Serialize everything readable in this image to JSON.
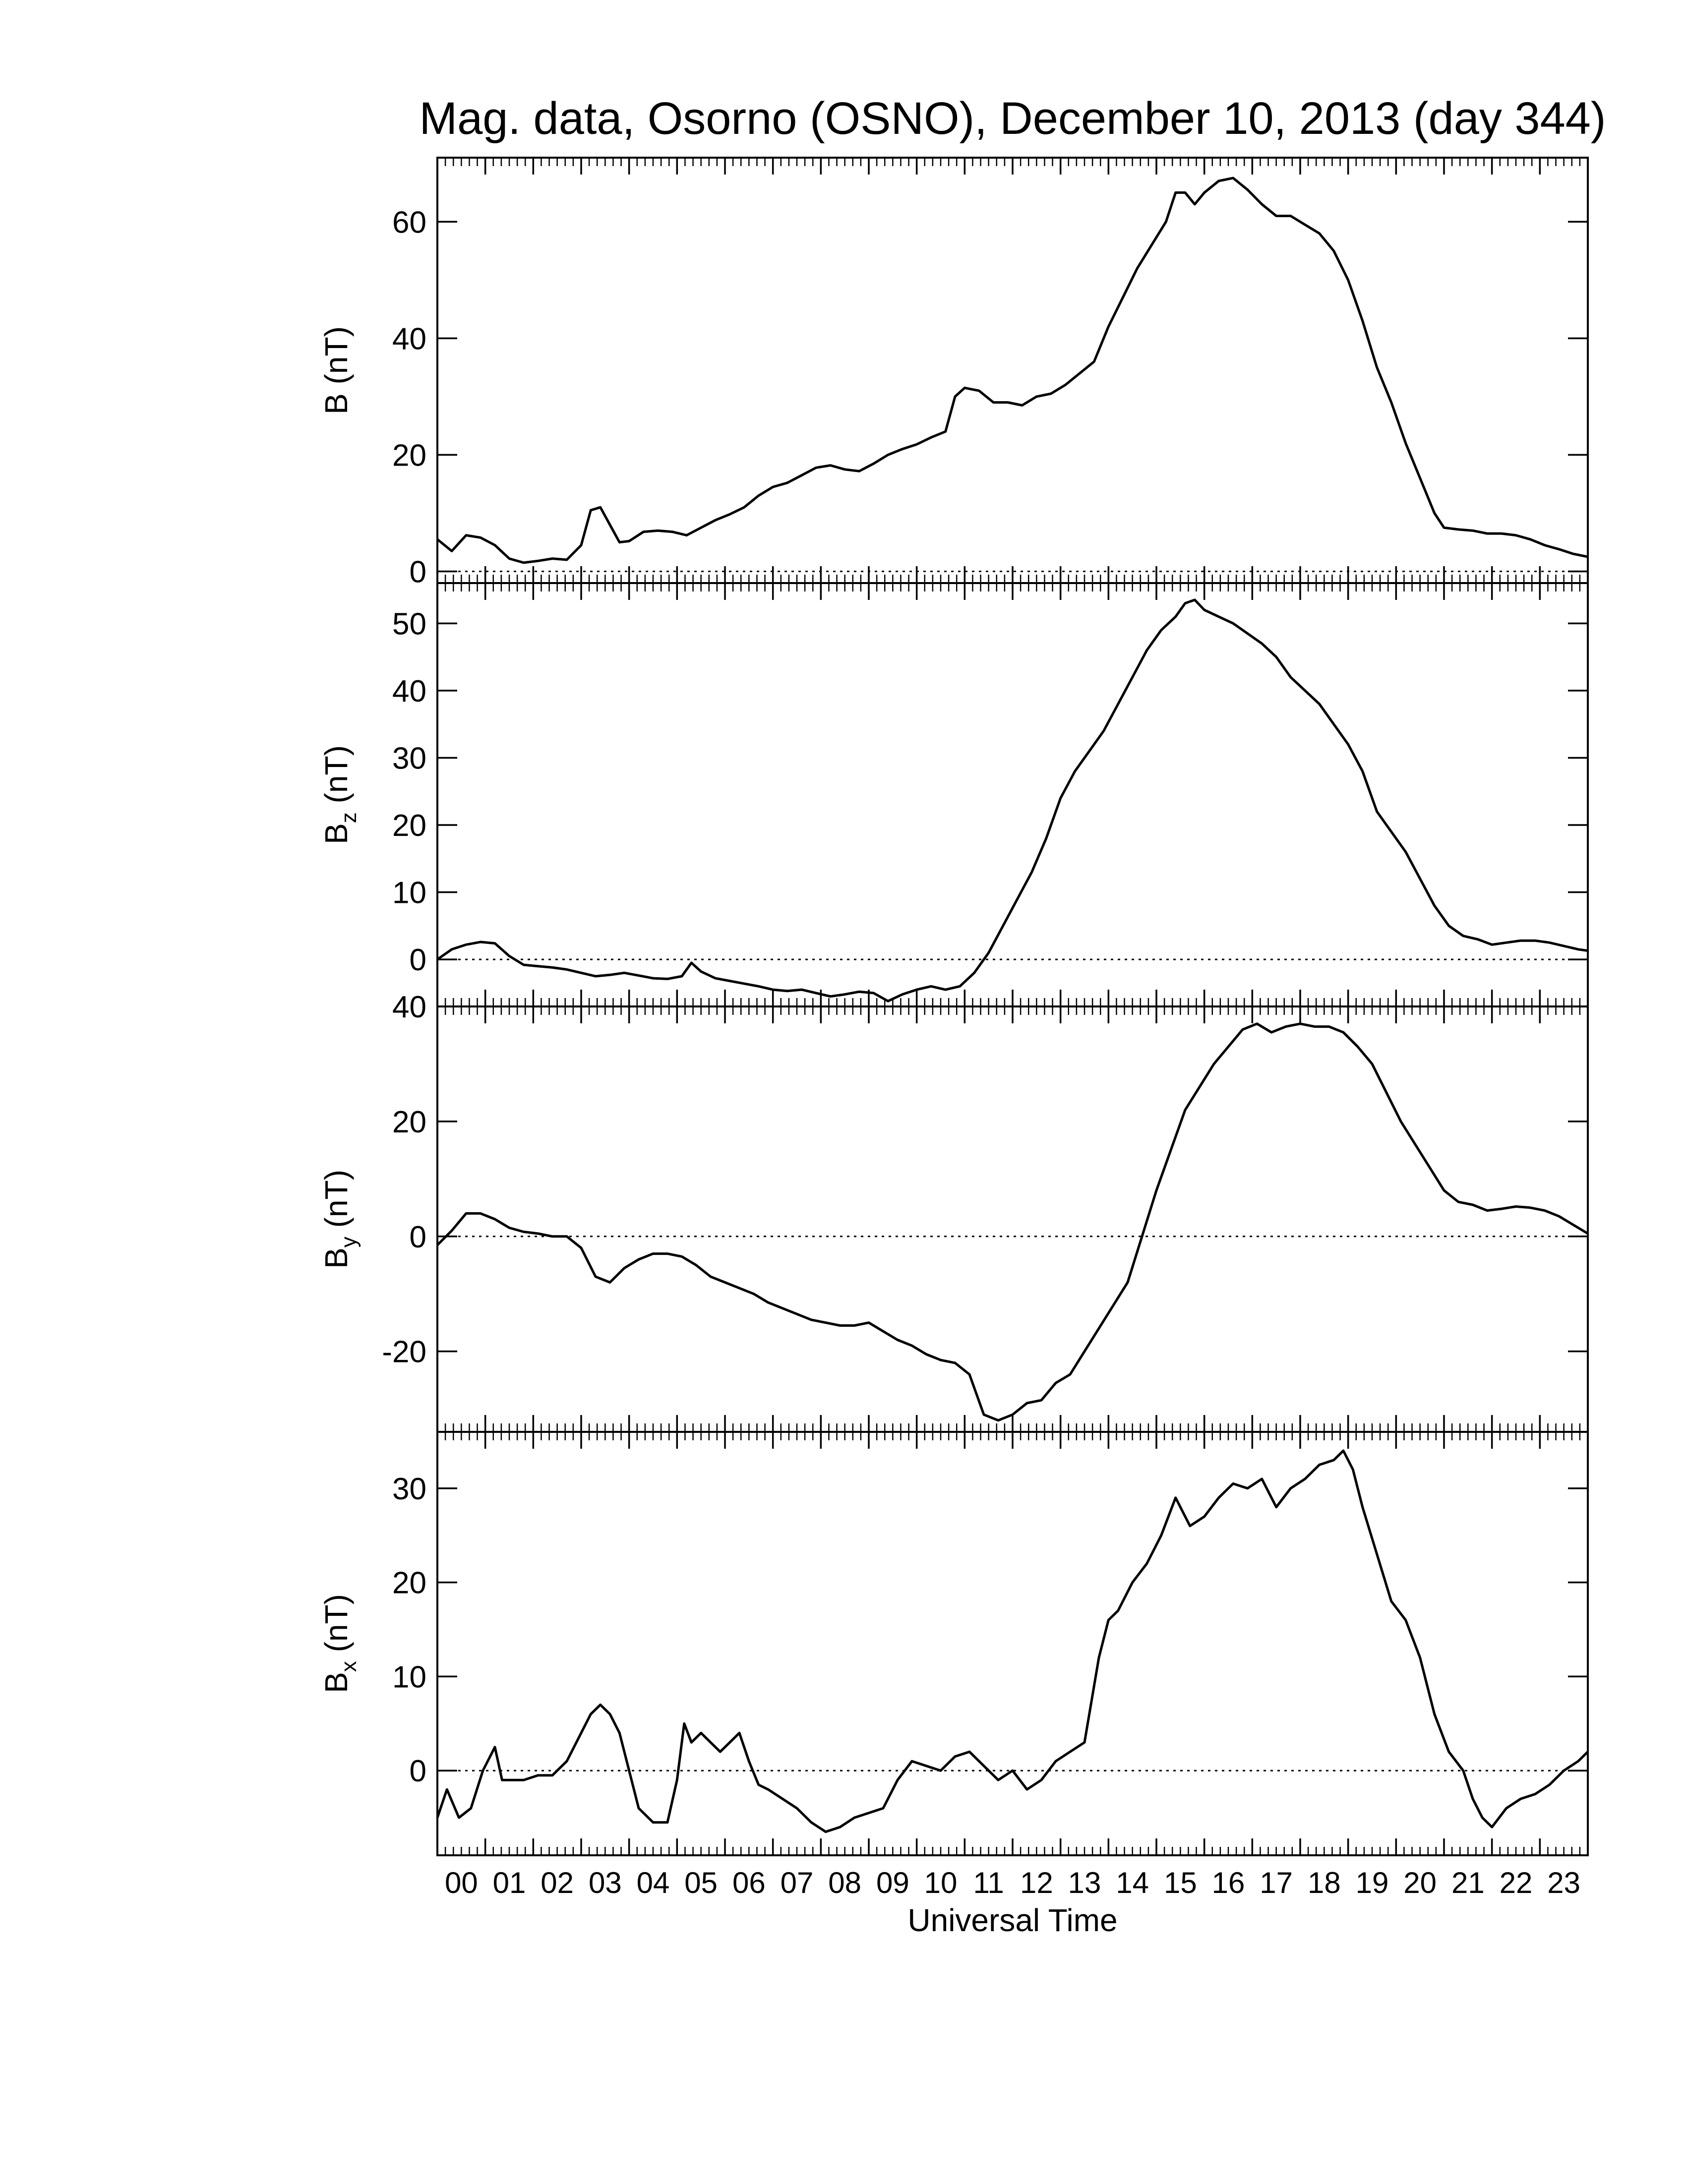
{
  "chart_data": {
    "type": "line",
    "title": "Mag. data, Osorno (OSNO), December 10, 2013 (day 344)",
    "xlabel": "Universal Time",
    "xlim": [
      0,
      24
    ],
    "x_tick_labels": [
      "00",
      "01",
      "02",
      "03",
      "04",
      "05",
      "06",
      "07",
      "08",
      "09",
      "10",
      "11",
      "12",
      "13",
      "14",
      "15",
      "16",
      "17",
      "18",
      "19",
      "20",
      "21",
      "22",
      "23"
    ],
    "line_color": "#000000",
    "zero_line": "dotted",
    "panels": [
      {
        "name": "B",
        "ylabel": "B (nT)",
        "ylabel_main": "B",
        "ylabel_sub": "",
        "ylabel_unit": " (nT)",
        "ylim": [
          -2,
          71
        ],
        "yticks": [
          0,
          20,
          40,
          60
        ],
        "ytick_labels": [
          "0",
          "20",
          "40",
          "60"
        ],
        "series": {
          "x": [
            0,
            0.3,
            0.6,
            0.9,
            1.2,
            1.5,
            1.8,
            2.1,
            2.4,
            2.7,
            3.0,
            3.2,
            3.4,
            3.6,
            3.8,
            4.0,
            4.3,
            4.6,
            4.9,
            5.2,
            5.5,
            5.8,
            6.1,
            6.4,
            6.7,
            7.0,
            7.3,
            7.6,
            7.9,
            8.2,
            8.5,
            8.8,
            9.1,
            9.4,
            9.7,
            10.0,
            10.3,
            10.6,
            10.8,
            11.0,
            11.3,
            11.6,
            11.9,
            12.2,
            12.5,
            12.8,
            13.1,
            13.4,
            13.7,
            14.0,
            14.3,
            14.6,
            14.9,
            15.2,
            15.4,
            15.6,
            15.8,
            16.0,
            16.3,
            16.6,
            16.9,
            17.2,
            17.5,
            17.8,
            18.1,
            18.4,
            18.7,
            19.0,
            19.3,
            19.6,
            19.9,
            20.2,
            20.5,
            20.8,
            21.0,
            21.3,
            21.6,
            21.9,
            22.2,
            22.5,
            22.8,
            23.1,
            23.4,
            23.7,
            24.0
          ],
          "y": [
            5.5,
            3.5,
            6.2,
            5.8,
            4.5,
            2.2,
            1.5,
            1.8,
            2.2,
            2.0,
            4.5,
            10.5,
            11.0,
            8.0,
            5.0,
            5.2,
            6.8,
            7.0,
            6.8,
            6.2,
            7.5,
            8.8,
            9.8,
            11.0,
            13.0,
            14.5,
            15.2,
            16.5,
            17.8,
            18.2,
            17.5,
            17.2,
            18.5,
            20.0,
            21.0,
            21.8,
            23.0,
            24.0,
            30.0,
            31.5,
            31.0,
            29.0,
            29.0,
            28.5,
            30.0,
            30.5,
            32.0,
            34.0,
            36.0,
            42.0,
            47.0,
            52.0,
            56.0,
            60.0,
            65.0,
            65.0,
            63.0,
            65.0,
            67.0,
            67.5,
            65.5,
            63.0,
            61.0,
            61.0,
            59.5,
            58.0,
            55.0,
            50.0,
            43.0,
            35.0,
            29.0,
            22.0,
            16.0,
            10.0,
            7.5,
            7.2,
            7.0,
            6.5,
            6.5,
            6.2,
            5.5,
            4.5,
            3.8,
            3.0,
            2.5
          ]
        }
      },
      {
        "name": "Bz",
        "ylabel": "Bz (nT)",
        "ylabel_main": "B",
        "ylabel_sub": "z",
        "ylabel_unit": " (nT)",
        "ylim": [
          -7,
          56
        ],
        "yticks": [
          0,
          10,
          20,
          30,
          40,
          50
        ],
        "ytick_labels": [
          "0",
          "10",
          "20",
          "30",
          "40",
          "50"
        ],
        "series": {
          "x": [
            0,
            0.3,
            0.6,
            0.9,
            1.2,
            1.5,
            1.8,
            2.1,
            2.4,
            2.7,
            3.0,
            3.3,
            3.6,
            3.9,
            4.2,
            4.5,
            4.8,
            5.1,
            5.3,
            5.5,
            5.8,
            6.1,
            6.4,
            6.7,
            7.0,
            7.3,
            7.6,
            7.9,
            8.2,
            8.5,
            8.8,
            9.1,
            9.4,
            9.7,
            10.0,
            10.3,
            10.6,
            10.9,
            11.2,
            11.5,
            11.8,
            12.1,
            12.4,
            12.7,
            13.0,
            13.3,
            13.6,
            13.9,
            14.2,
            14.5,
            14.8,
            15.1,
            15.4,
            15.6,
            15.8,
            16.0,
            16.3,
            16.6,
            16.9,
            17.2,
            17.5,
            17.8,
            18.1,
            18.4,
            18.7,
            19.0,
            19.3,
            19.6,
            19.9,
            20.2,
            20.5,
            20.8,
            21.1,
            21.4,
            21.7,
            22.0,
            22.3,
            22.6,
            22.9,
            23.2,
            23.5,
            23.8,
            24.0
          ],
          "y": [
            0,
            1.5,
            2.2,
            2.6,
            2.4,
            0.5,
            -0.8,
            -1.0,
            -1.2,
            -1.5,
            -2.0,
            -2.5,
            -2.3,
            -2.0,
            -2.4,
            -2.8,
            -2.9,
            -2.5,
            -0.5,
            -1.8,
            -2.8,
            -3.2,
            -3.6,
            -4.0,
            -4.5,
            -4.7,
            -4.5,
            -5.0,
            -5.5,
            -5.2,
            -4.8,
            -5.0,
            -6.2,
            -5.2,
            -4.5,
            -4.0,
            -4.5,
            -4.0,
            -2.0,
            1.0,
            5.0,
            9.0,
            13.0,
            18.0,
            24.0,
            28.0,
            31.0,
            34.0,
            38.0,
            42.0,
            46.0,
            49.0,
            51.0,
            53.0,
            53.5,
            52.0,
            51.0,
            50.0,
            48.5,
            47.0,
            45.0,
            42.0,
            40.0,
            38.0,
            35.0,
            32.0,
            28.0,
            22.0,
            19.0,
            16.0,
            12.0,
            8.0,
            5.0,
            3.5,
            3.0,
            2.2,
            2.5,
            2.8,
            2.8,
            2.5,
            2.0,
            1.5,
            1.3
          ]
        }
      },
      {
        "name": "By",
        "ylabel": "By (nT)",
        "ylabel_main": "B",
        "ylabel_sub": "y",
        "ylabel_unit": " (nT)",
        "ylim": [
          -34,
          40
        ],
        "yticks": [
          -20,
          0,
          20,
          40
        ],
        "ytick_labels": [
          "-20",
          "0",
          "20",
          "40"
        ],
        "series": {
          "x": [
            0,
            0.3,
            0.6,
            0.9,
            1.2,
            1.5,
            1.8,
            2.1,
            2.4,
            2.7,
            3.0,
            3.3,
            3.6,
            3.9,
            4.2,
            4.5,
            4.8,
            5.1,
            5.4,
            5.7,
            6.0,
            6.3,
            6.6,
            6.9,
            7.2,
            7.5,
            7.8,
            8.1,
            8.4,
            8.7,
            9.0,
            9.3,
            9.6,
            9.9,
            10.2,
            10.5,
            10.8,
            11.1,
            11.4,
            11.7,
            12.0,
            12.3,
            12.6,
            12.9,
            13.2,
            13.5,
            13.8,
            14.1,
            14.4,
            14.7,
            15.0,
            15.3,
            15.6,
            15.9,
            16.2,
            16.5,
            16.8,
            17.1,
            17.4,
            17.7,
            18.0,
            18.3,
            18.6,
            18.9,
            19.2,
            19.5,
            19.8,
            20.1,
            20.4,
            20.7,
            21.0,
            21.3,
            21.6,
            21.9,
            22.2,
            22.5,
            22.8,
            23.1,
            23.4,
            23.7,
            24.0
          ],
          "y": [
            -1.5,
            1.0,
            4.0,
            4.0,
            3.0,
            1.5,
            0.8,
            0.5,
            0,
            0,
            -2.0,
            -7.0,
            -8.0,
            -5.5,
            -4.0,
            -3.0,
            -3.0,
            -3.5,
            -5.0,
            -7.0,
            -8.0,
            -9.0,
            -10.0,
            -11.5,
            -12.5,
            -13.5,
            -14.5,
            -15.0,
            -15.5,
            -15.5,
            -15.0,
            -16.5,
            -18.0,
            -19.0,
            -20.5,
            -21.5,
            -22.0,
            -24.0,
            -31.0,
            -32.0,
            -31.0,
            -29.0,
            -28.5,
            -25.5,
            -24.0,
            -20.0,
            -16.0,
            -12.0,
            -8.0,
            0,
            8.0,
            15.0,
            22.0,
            26.0,
            30.0,
            33.0,
            36.0,
            37.0,
            35.5,
            36.5,
            37.0,
            36.5,
            36.5,
            35.5,
            33.0,
            30.0,
            25.0,
            20.0,
            16.0,
            12.0,
            8.0,
            6.0,
            5.5,
            4.5,
            4.8,
            5.2,
            5.0,
            4.5,
            3.5,
            2.0,
            0.5
          ]
        }
      },
      {
        "name": "Bx",
        "ylabel": "Bx (nT)",
        "ylabel_main": "B",
        "ylabel_sub": "x",
        "ylabel_unit": " (nT)",
        "ylim": [
          -9,
          36
        ],
        "yticks": [
          0,
          10,
          20,
          30
        ],
        "ytick_labels": [
          "0",
          "10",
          "20",
          "30"
        ],
        "series": {
          "x": [
            0,
            0.2,
            0.45,
            0.7,
            0.95,
            1.2,
            1.35,
            1.5,
            1.8,
            2.1,
            2.4,
            2.7,
            3.0,
            3.2,
            3.4,
            3.6,
            3.8,
            4.0,
            4.2,
            4.5,
            4.8,
            5.0,
            5.15,
            5.3,
            5.5,
            5.7,
            5.9,
            6.1,
            6.3,
            6.5,
            6.7,
            6.9,
            7.2,
            7.5,
            7.8,
            8.1,
            8.4,
            8.7,
            9.0,
            9.3,
            9.6,
            9.9,
            10.2,
            10.5,
            10.8,
            11.1,
            11.4,
            11.7,
            12.0,
            12.3,
            12.6,
            12.9,
            13.2,
            13.5,
            13.8,
            14.0,
            14.2,
            14.5,
            14.8,
            15.1,
            15.4,
            15.7,
            16.0,
            16.3,
            16.6,
            16.9,
            17.2,
            17.5,
            17.8,
            18.1,
            18.4,
            18.7,
            18.9,
            19.1,
            19.3,
            19.6,
            19.9,
            20.2,
            20.5,
            20.8,
            21.1,
            21.4,
            21.6,
            21.8,
            22.0,
            22.3,
            22.6,
            22.9,
            23.2,
            23.5,
            23.8,
            24.0
          ],
          "y": [
            -5.0,
            -2.0,
            -5.0,
            -4.0,
            0,
            2.5,
            -1.0,
            -1.0,
            -1.0,
            -0.5,
            -0.5,
            1.0,
            4.0,
            6.0,
            7.0,
            6.0,
            4.0,
            0,
            -4.0,
            -5.5,
            -5.5,
            -1.0,
            5.0,
            3.0,
            4.0,
            3.0,
            2.0,
            3.0,
            4.0,
            1.0,
            -1.5,
            -2.0,
            -3.0,
            -4.0,
            -5.5,
            -6.5,
            -6.0,
            -5.0,
            -4.5,
            -4.0,
            -1.0,
            1.0,
            0.5,
            0,
            1.5,
            2.0,
            0.5,
            -1.0,
            0,
            -2.0,
            -1.0,
            1.0,
            2.0,
            3.0,
            12.0,
            16.0,
            17.0,
            20.0,
            22.0,
            25.0,
            29.0,
            26.0,
            27.0,
            29.0,
            30.5,
            30.0,
            31.0,
            28.0,
            30.0,
            31.0,
            32.5,
            33.0,
            34.0,
            32.0,
            28.0,
            23.0,
            18.0,
            16.0,
            12.0,
            6.0,
            2.0,
            0,
            -3.0,
            -5.0,
            -6.0,
            -4.0,
            -3.0,
            -2.5,
            -1.5,
            0,
            1.0,
            2.0
          ]
        }
      }
    ]
  }
}
